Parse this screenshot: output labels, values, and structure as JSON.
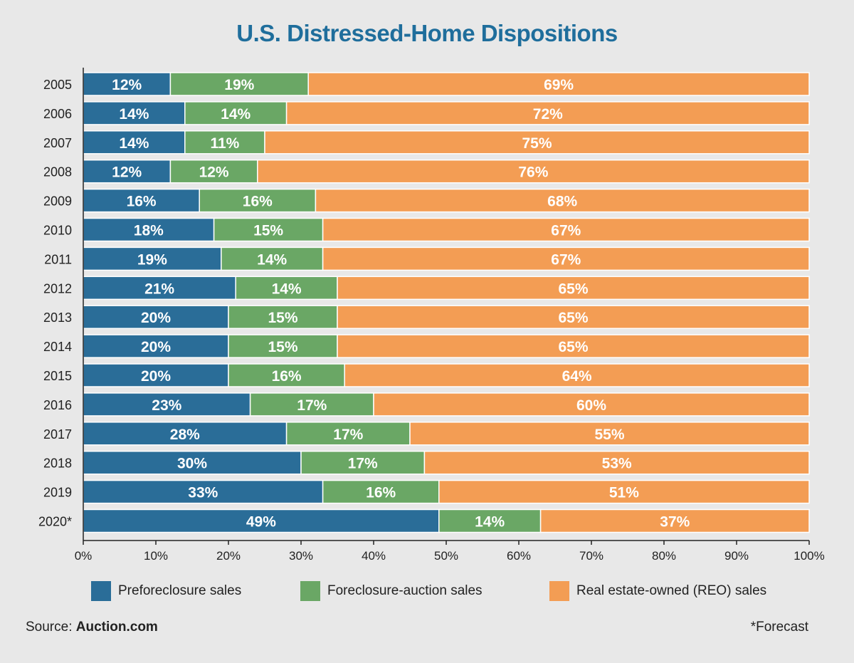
{
  "title": "U.S. Distressed-Home Dispositions",
  "legend": [
    {
      "label": "Preforeclosure sales",
      "color": "#2a6d98"
    },
    {
      "label": "Foreclosure-auction sales",
      "color": "#6aa765"
    },
    {
      "label": "Real estate-owned (REO) sales",
      "color": "#f39d54"
    }
  ],
  "source_prefix": "Source: ",
  "source_name": "Auction.com",
  "footnote": "*Forecast",
  "chart_data": {
    "type": "bar",
    "orientation": "horizontal",
    "stacked": true,
    "title": "U.S. Distressed-Home Dispositions",
    "categories": [
      "2005",
      "2006",
      "2007",
      "2008",
      "2009",
      "2010",
      "2011",
      "2012",
      "2013",
      "2014",
      "2015",
      "2016",
      "2017",
      "2018",
      "2019",
      "2020*"
    ],
    "series": [
      {
        "name": "Preforeclosure sales",
        "color": "#2a6d98",
        "values": [
          12,
          14,
          14,
          12,
          16,
          18,
          19,
          21,
          20,
          20,
          20,
          23,
          28,
          30,
          33,
          49
        ]
      },
      {
        "name": "Foreclosure-auction sales",
        "color": "#6aa765",
        "values": [
          19,
          14,
          11,
          12,
          16,
          15,
          14,
          14,
          15,
          15,
          16,
          17,
          17,
          17,
          16,
          14
        ]
      },
      {
        "name": "Real estate-owned (REO) sales",
        "color": "#f39d54",
        "values": [
          69,
          72,
          75,
          76,
          68,
          67,
          67,
          65,
          65,
          65,
          64,
          60,
          55,
          53,
          51,
          37
        ]
      }
    ],
    "xlim": [
      0,
      100
    ],
    "x_ticks": [
      "0%",
      "10%",
      "20%",
      "30%",
      "40%",
      "50%",
      "60%",
      "70%",
      "80%",
      "90%",
      "100%"
    ],
    "value_suffix": "%",
    "gridlines": false,
    "legend_position": "bottom"
  }
}
